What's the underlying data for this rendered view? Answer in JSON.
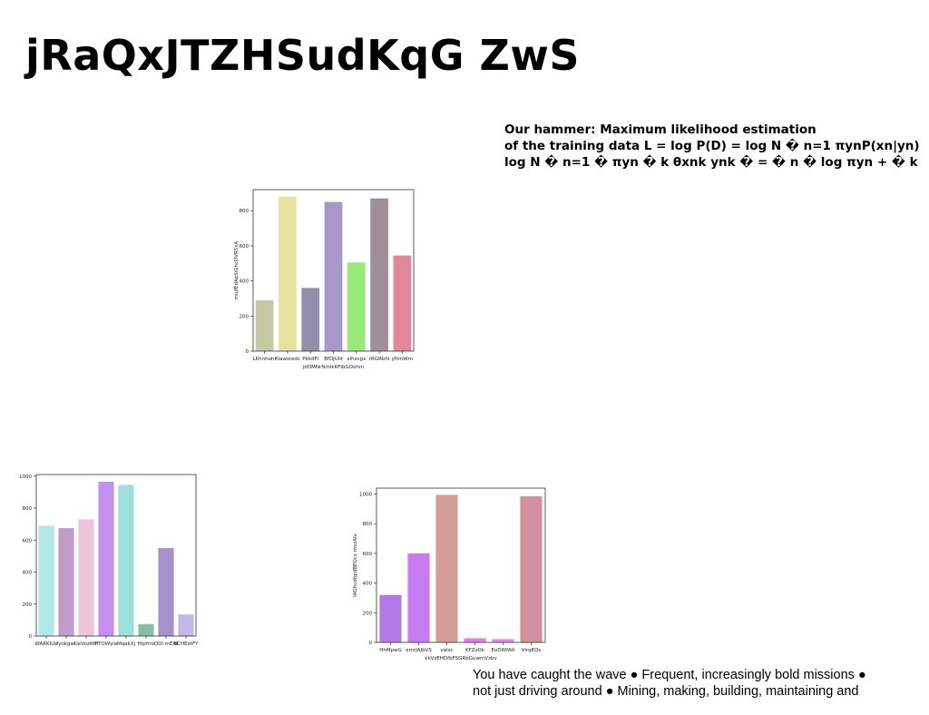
{
  "slide": {
    "title": "jRaQxJTZHSudKqG ZwS",
    "top_text": [
      "Our hammer: Maximum likelihood estimation",
      "of the training data L = log P(D) = log N � n=1 πynP(xn|yn)",
      "log N � n=1 � πyn � k θxnk ynk � = � n � log πyn + � k"
    ],
    "bottom_text": [
      "You have caught the wave ● Frequent, increasingly bold missions ●",
      "not just driving around ● Mining, making, building, maintaining and"
    ]
  },
  "chart_data": [
    {
      "type": "bar",
      "xlabel": "jdOMNrNmIkKFIbGOohm",
      "ylabel": "mujfEdApSiGhcDVRSxA",
      "ylim": [
        0,
        920
      ],
      "yticks": [
        0,
        200,
        400,
        600,
        800
      ],
      "categories": [
        "LKhnhahr",
        "Xlawsredc",
        "PkkdFl",
        "BfDjUld",
        "xihzcgx",
        "rRGRbhl",
        "yftmWm"
      ],
      "values": [
        290,
        880,
        360,
        850,
        505,
        870,
        545
      ],
      "colors": [
        "#c4c8a4",
        "#e6e29e",
        "#9090ac",
        "#a698c8",
        "#98ea76",
        "#a08e98",
        "#e3889c"
      ]
    },
    {
      "type": "bar",
      "xlabel": "",
      "ylabel": "",
      "ylim": [
        0,
        1010
      ],
      "yticks": [
        0,
        200,
        400,
        600,
        800,
        1000
      ],
      "categories": [
        "WARKIUe",
        "fyokgwi",
        "UeVozWH",
        "FTOWyla",
        "MqakXj",
        "Hlpfrro",
        "QDl mEtd",
        "BCHExtFY"
      ],
      "values": [
        690,
        675,
        730,
        965,
        945,
        75,
        550,
        135
      ],
      "colors": [
        "#b0e8e8",
        "#c09ccc",
        "#eac6d6",
        "#c490ee",
        "#9ce0dc",
        "#86c0a4",
        "#a890cc",
        "#c2b8e4"
      ]
    },
    {
      "type": "bar",
      "xlabel": "kkVzEHDfbFSGRbGuwmVzbv",
      "ylabel": "IAQhcdhpdBEQcx mvzAlv",
      "ylim": [
        0,
        1040
      ],
      "yticks": [
        0,
        200,
        400,
        600,
        800,
        1000
      ],
      "categories": [
        "HhMpwG",
        "emrJAJbVS",
        "valsc",
        "KFZsOk",
        "EoDWfAtl",
        "VirqEQs"
      ],
      "values": [
        320,
        600,
        995,
        28,
        22,
        985
      ],
      "colors": [
        "#b27ae6",
        "#c87cf4",
        "#d49e96",
        "#ee78ee",
        "#e486ee",
        "#d4909e"
      ]
    }
  ]
}
